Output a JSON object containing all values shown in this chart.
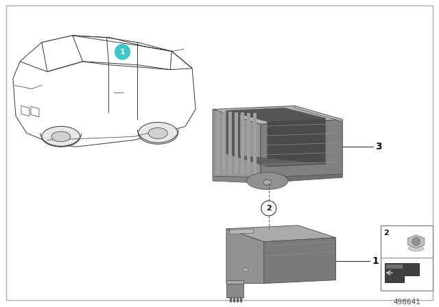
{
  "background_color": "#ffffff",
  "border_color": "#aaaaaa",
  "part_number": "498641",
  "car_color": "#333333",
  "car_lw": 0.7,
  "part_gray_light": "#b0b0b0",
  "part_gray_mid": "#8a8a8a",
  "part_gray_dark": "#6a6a6a",
  "part_gray_darker": "#555555",
  "teal_color": "#3cc8c8",
  "label_color": "#111111",
  "inset_border": "#888888",
  "part_number_color": "#444444"
}
